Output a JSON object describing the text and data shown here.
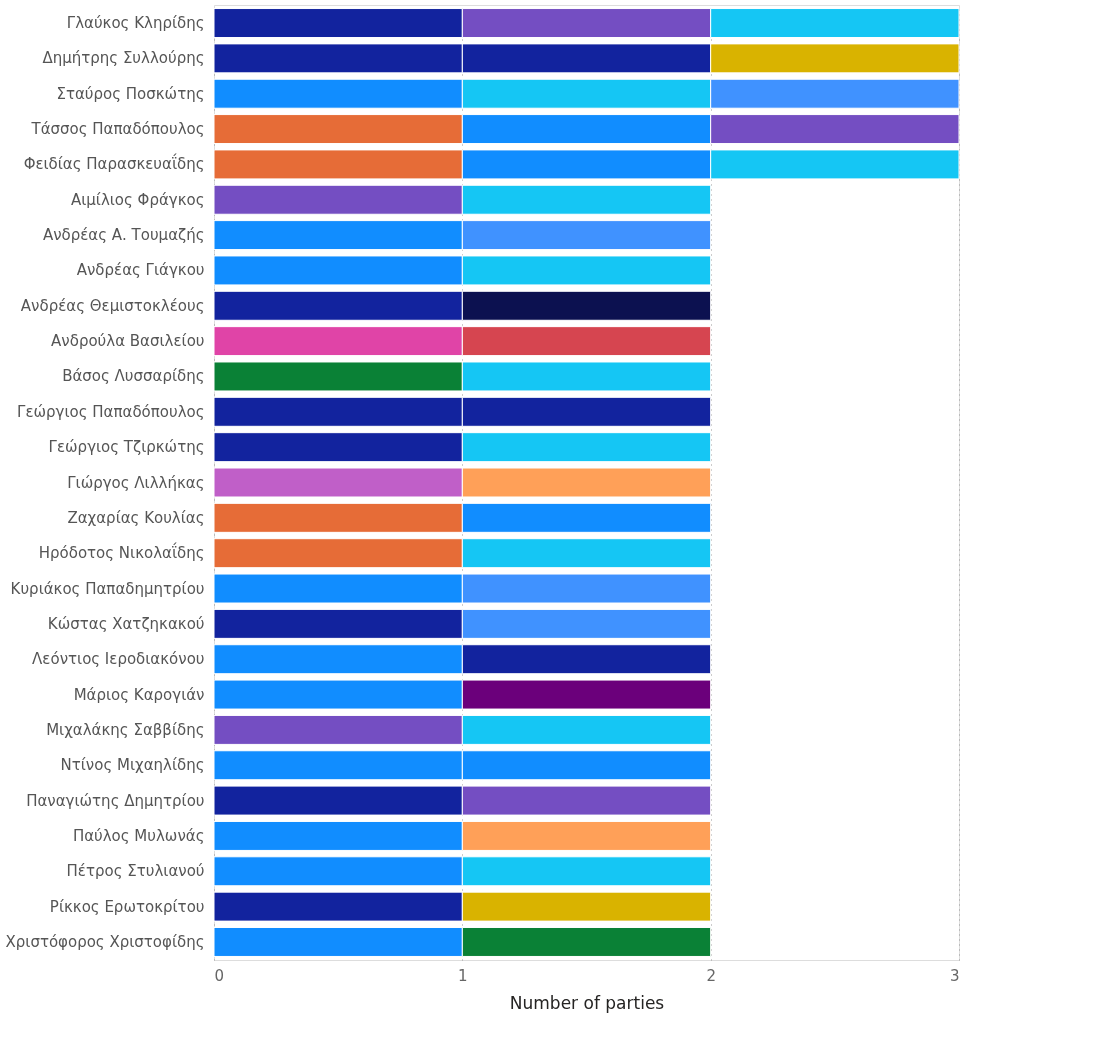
{
  "chart_data": {
    "type": "bar",
    "orientation": "horizontal",
    "stacked": true,
    "xlabel": "Number of parties",
    "xlim": [
      0,
      3
    ],
    "xticks": [
      0,
      1,
      2,
      3
    ],
    "grid": "x",
    "categories": [
      "Γλαύκος Κληρίδης",
      "Δημήτρης Συλλούρης",
      "Σταύρος Ποσκώτης",
      "Τάσσος Παπαδόπουλος",
      "Φειδίας Παρασκευαΐδης",
      "Αιμίλιος Φράγκος",
      "Ανδρέας Α. Τουμαζής",
      "Ανδρέας Γιάγκου",
      "Ανδρέας Θεμιστοκλέους",
      "Ανδρούλα Βασιλείου",
      "Βάσος Λυσσαρίδης",
      "Γεώργιος Παπαδόπουλος",
      "Γεώργιος Τζιρκώτης",
      "Γιώργος Λιλλήκας",
      "Ζαχαρίας Κουλίας",
      "Ηρόδοτος Νικολαΐδης",
      "Κυριάκος Παπαδημητρίου",
      "Κώστας Χατζηκακού",
      "Λεόντιος Ιεροδιακόνου",
      "Μάριος Καρογιάν",
      "Μιχαλάκης Σαββίδης",
      "Ντίνος Μιχαηλίδης",
      "Παναγιώτης Δημητρίου",
      "Παύλος Μυλωνάς",
      "Πέτρος Στυλιανού",
      "Ρίκκος Ερωτοκρίτου",
      "Χριστόφορος Χριστοφίδης"
    ],
    "series": [
      {
        "values": [
          1,
          1,
          1,
          1,
          1,
          1,
          1,
          1,
          1,
          1,
          1,
          1,
          1,
          1,
          1,
          1,
          1,
          1,
          1,
          1,
          1,
          1,
          1,
          1,
          1,
          1,
          1
        ],
        "colors": [
          "#12239e",
          "#12239e",
          "#118dff",
          "#e66c37",
          "#e66c37",
          "#744ec2",
          "#118dff",
          "#118dff",
          "#12239e",
          "#e044a7",
          "#0a8136",
          "#12239e",
          "#12239e",
          "#c05fc8",
          "#e66c37",
          "#e66c37",
          "#118dff",
          "#12239e",
          "#118dff",
          "#118dff",
          "#744ec2",
          "#118dff",
          "#12239e",
          "#118dff",
          "#118dff",
          "#12239e",
          "#118dff"
        ]
      },
      {
        "values": [
          1,
          1,
          1,
          1,
          1,
          1,
          1,
          1,
          1,
          1,
          1,
          1,
          1,
          1,
          1,
          1,
          1,
          1,
          1,
          1,
          1,
          1,
          1,
          1,
          1,
          1,
          1
        ],
        "colors": [
          "#744ec2",
          "#12239e",
          "#15c6f4",
          "#118dff",
          "#118dff",
          "#15c6f4",
          "#4092ff",
          "#15c6f4",
          "#0c1150",
          "#d64550",
          "#15c6f4",
          "#12239e",
          "#15c6f4",
          "#ffa058",
          "#118dff",
          "#15c6f4",
          "#4092ff",
          "#4092ff",
          "#12239e",
          "#6b007b",
          "#15c6f4",
          "#118dff",
          "#744ec2",
          "#ffa058",
          "#15c6f4",
          "#d9b300",
          "#0a8136"
        ]
      },
      {
        "values": [
          1,
          1,
          1,
          1,
          1,
          null,
          null,
          null,
          null,
          null,
          null,
          null,
          null,
          null,
          null,
          null,
          null,
          null,
          null,
          null,
          null,
          null,
          null,
          null,
          null,
          null,
          null
        ],
        "colors": [
          "#15c6f4",
          "#d9b300",
          "#4092ff",
          "#744ec2",
          "#15c6f4",
          null,
          null,
          null,
          null,
          null,
          null,
          null,
          null,
          null,
          null,
          null,
          null,
          null,
          null,
          null,
          null,
          null,
          null,
          null,
          null,
          null,
          null
        ]
      }
    ]
  }
}
